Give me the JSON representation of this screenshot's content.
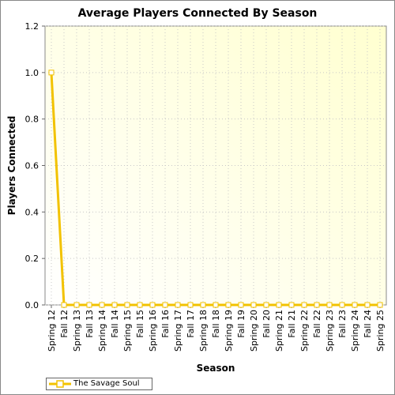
{
  "chart_data": {
    "type": "line",
    "title": "Average Players Connected By Season",
    "xlabel": "Season",
    "ylabel": "Players Connected",
    "categories": [
      "Spring 12",
      "Fall 12",
      "Spring 13",
      "Fall 13",
      "Spring 14",
      "Fall 14",
      "Spring 15",
      "Fall 15",
      "Spring 16",
      "Fall 16",
      "Spring 17",
      "Fall 17",
      "Spring 18",
      "Fall 18",
      "Spring 19",
      "Fall 19",
      "Spring 20",
      "Fall 20",
      "Spring 21",
      "Fall 21",
      "Spring 22",
      "Fall 22",
      "Spring 23",
      "Fall 23",
      "Spring 24",
      "Fall 24",
      "Spring 25"
    ],
    "series": [
      {
        "name": "The Savage Soul",
        "color": "#f2c200",
        "values": [
          1.0,
          0,
          0,
          0,
          0,
          0,
          0,
          0,
          0,
          0,
          0,
          0,
          0,
          0,
          0,
          0,
          0,
          0,
          0,
          0,
          0,
          0,
          0,
          0,
          0,
          0,
          0
        ]
      }
    ],
    "ylim": [
      0,
      1.2
    ],
    "yticks": [
      "0.0",
      "0.2",
      "0.4",
      "0.6",
      "0.8",
      "1.0",
      "1.2"
    ],
    "grid": true,
    "legend": "bottom-left",
    "plot_background": [
      "#ffffe0",
      "#ffffff"
    ]
  }
}
